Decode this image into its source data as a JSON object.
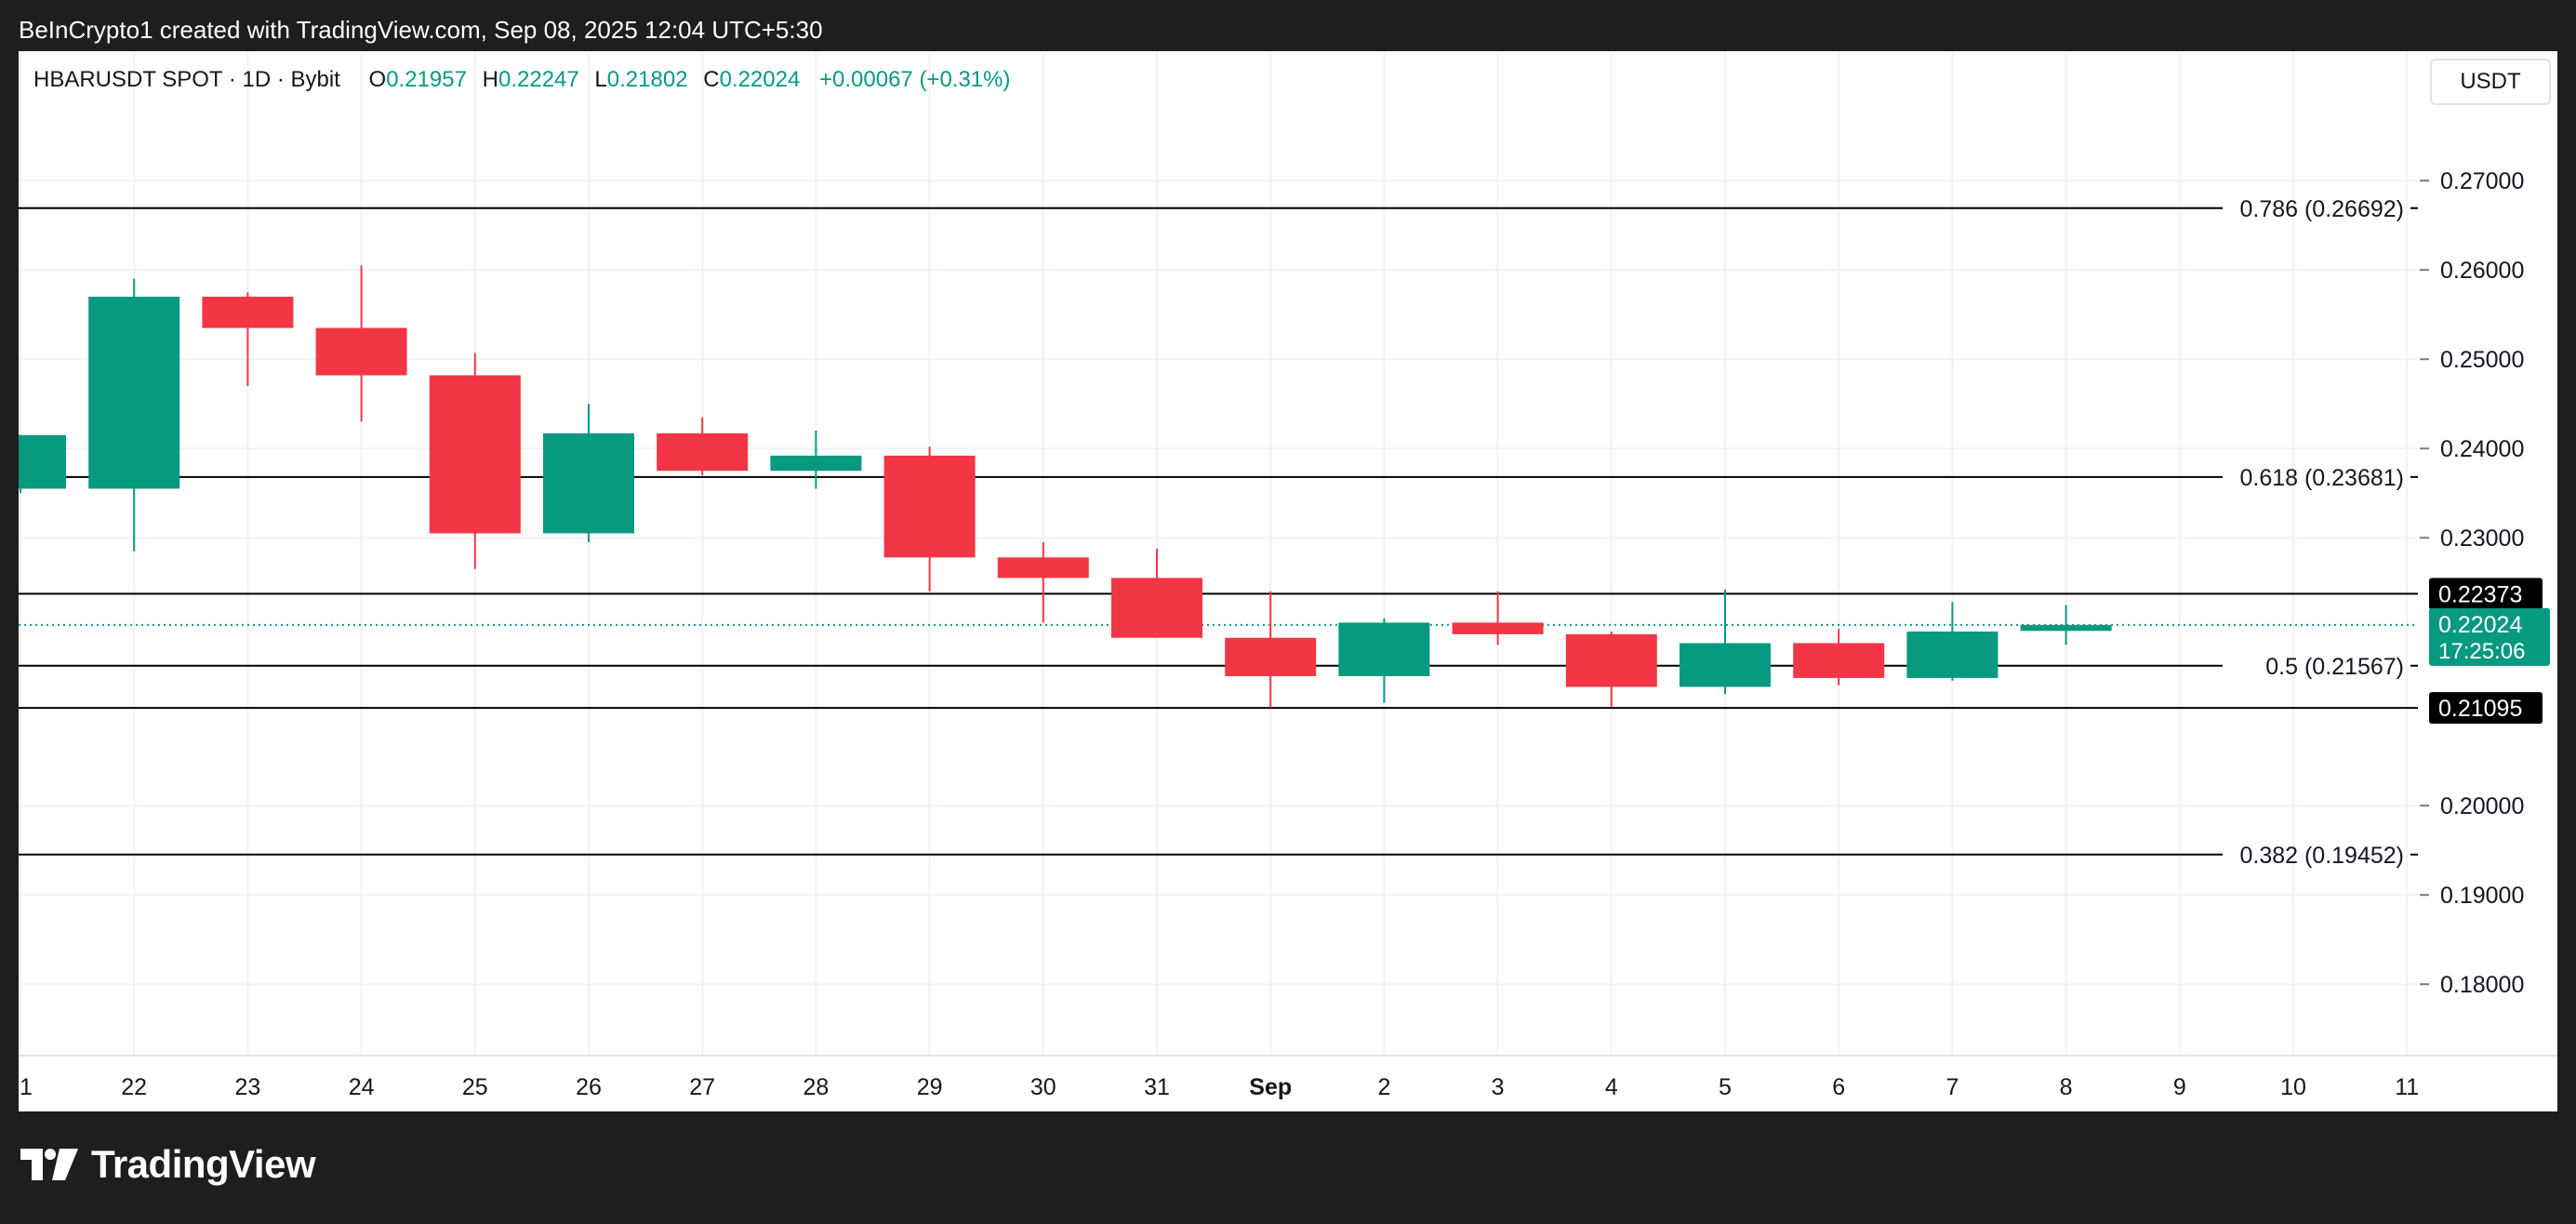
{
  "caption": "BeInCrypto1 created with TradingView.com, Sep 08, 2025 12:04 UTC+5:30",
  "brand": {
    "name": "TradingView",
    "logo_icon": "tradingview-logo-icon"
  },
  "legend": {
    "symbol": "HBARUSDT SPOT · 1D · Bybit",
    "open_label": "O",
    "open": "0.21957",
    "high_label": "H",
    "high": "0.22247",
    "low_label": "L",
    "low": "0.21802",
    "close_label": "C",
    "close": "0.22024",
    "change": "+0.00067 (+0.31%)"
  },
  "currency": "USDT",
  "colors": {
    "up": "#089981",
    "down": "#f23645",
    "grid": "#f0f3fa",
    "axis_text": "#131722",
    "fib_line": "#000000",
    "price_line": "#089981"
  },
  "chart_data": {
    "type": "candlestick",
    "x_tick_labels": [
      "1",
      "22",
      "23",
      "24",
      "25",
      "26",
      "27",
      "28",
      "29",
      "30",
      "31",
      "Sep",
      "2",
      "3",
      "4",
      "5",
      "6",
      "7",
      "8",
      "9",
      "10",
      "11"
    ],
    "y_tick_labels": [
      "0.27000",
      "0.26000",
      "0.25000",
      "0.24000",
      "0.23000",
      "0.20000",
      "0.19000",
      "0.18000"
    ],
    "y_ticks": [
      0.27,
      0.26,
      0.25,
      0.24,
      0.23,
      0.2,
      0.19,
      0.18
    ],
    "ylim": [
      0.172,
      0.2845
    ],
    "candles": [
      {
        "date": "Aug 21",
        "o": 0.2355,
        "h": 0.2415,
        "l": 0.235,
        "c": 0.2415
      },
      {
        "date": "Aug 22",
        "o": 0.2355,
        "h": 0.259,
        "l": 0.2285,
        "c": 0.257
      },
      {
        "date": "Aug 23",
        "o": 0.257,
        "h": 0.2575,
        "l": 0.247,
        "c": 0.2535
      },
      {
        "date": "Aug 24",
        "o": 0.2535,
        "h": 0.2605,
        "l": 0.243,
        "c": 0.2482
      },
      {
        "date": "Aug 25",
        "o": 0.2482,
        "h": 0.2507,
        "l": 0.2265,
        "c": 0.2305
      },
      {
        "date": "Aug 26",
        "o": 0.2305,
        "h": 0.245,
        "l": 0.2295,
        "c": 0.2417
      },
      {
        "date": "Aug 27",
        "o": 0.2417,
        "h": 0.2435,
        "l": 0.237,
        "c": 0.2375
      },
      {
        "date": "Aug 28",
        "o": 0.2375,
        "h": 0.242,
        "l": 0.2355,
        "c": 0.2392
      },
      {
        "date": "Aug 29",
        "o": 0.2392,
        "h": 0.2402,
        "l": 0.224,
        "c": 0.2278
      },
      {
        "date": "Aug 30",
        "o": 0.2278,
        "h": 0.2295,
        "l": 0.2205,
        "c": 0.2255
      },
      {
        "date": "Aug 31",
        "o": 0.2255,
        "h": 0.2288,
        "l": 0.2188,
        "c": 0.2188
      },
      {
        "date": "Sep 1",
        "o": 0.2188,
        "h": 0.224,
        "l": 0.211,
        "c": 0.2145
      },
      {
        "date": "Sep 2",
        "o": 0.2145,
        "h": 0.221,
        "l": 0.2115,
        "c": 0.2205
      },
      {
        "date": "Sep 3",
        "o": 0.2205,
        "h": 0.224,
        "l": 0.218,
        "c": 0.2192
      },
      {
        "date": "Sep 4",
        "o": 0.2192,
        "h": 0.2195,
        "l": 0.211,
        "c": 0.2133
      },
      {
        "date": "Sep 5",
        "o": 0.2133,
        "h": 0.2242,
        "l": 0.2125,
        "c": 0.2182
      },
      {
        "date": "Sep 6",
        "o": 0.2182,
        "h": 0.2198,
        "l": 0.2135,
        "c": 0.2143
      },
      {
        "date": "Sep 7",
        "o": 0.2143,
        "h": 0.2228,
        "l": 0.214,
        "c": 0.2195
      },
      {
        "date": "Sep 8",
        "o": 0.21957,
        "h": 0.22247,
        "l": 0.21802,
        "c": 0.22024
      }
    ],
    "fib_levels": [
      {
        "label": "0.786 (0.26692)",
        "value": 0.26692
      },
      {
        "label": "0.618 (0.23681)",
        "value": 0.23681
      },
      {
        "label": "0.5 (0.21567)",
        "value": 0.21567
      },
      {
        "label": "0.382 (0.19452)",
        "value": 0.19452
      }
    ],
    "horizontal_levels": [
      {
        "label": "0.22373",
        "value": 0.22373
      },
      {
        "label": "0.21095",
        "value": 0.21095
      }
    ],
    "current_price": {
      "label": "0.22024",
      "value": 0.22024,
      "countdown": "17:25:06"
    },
    "grid": true
  }
}
